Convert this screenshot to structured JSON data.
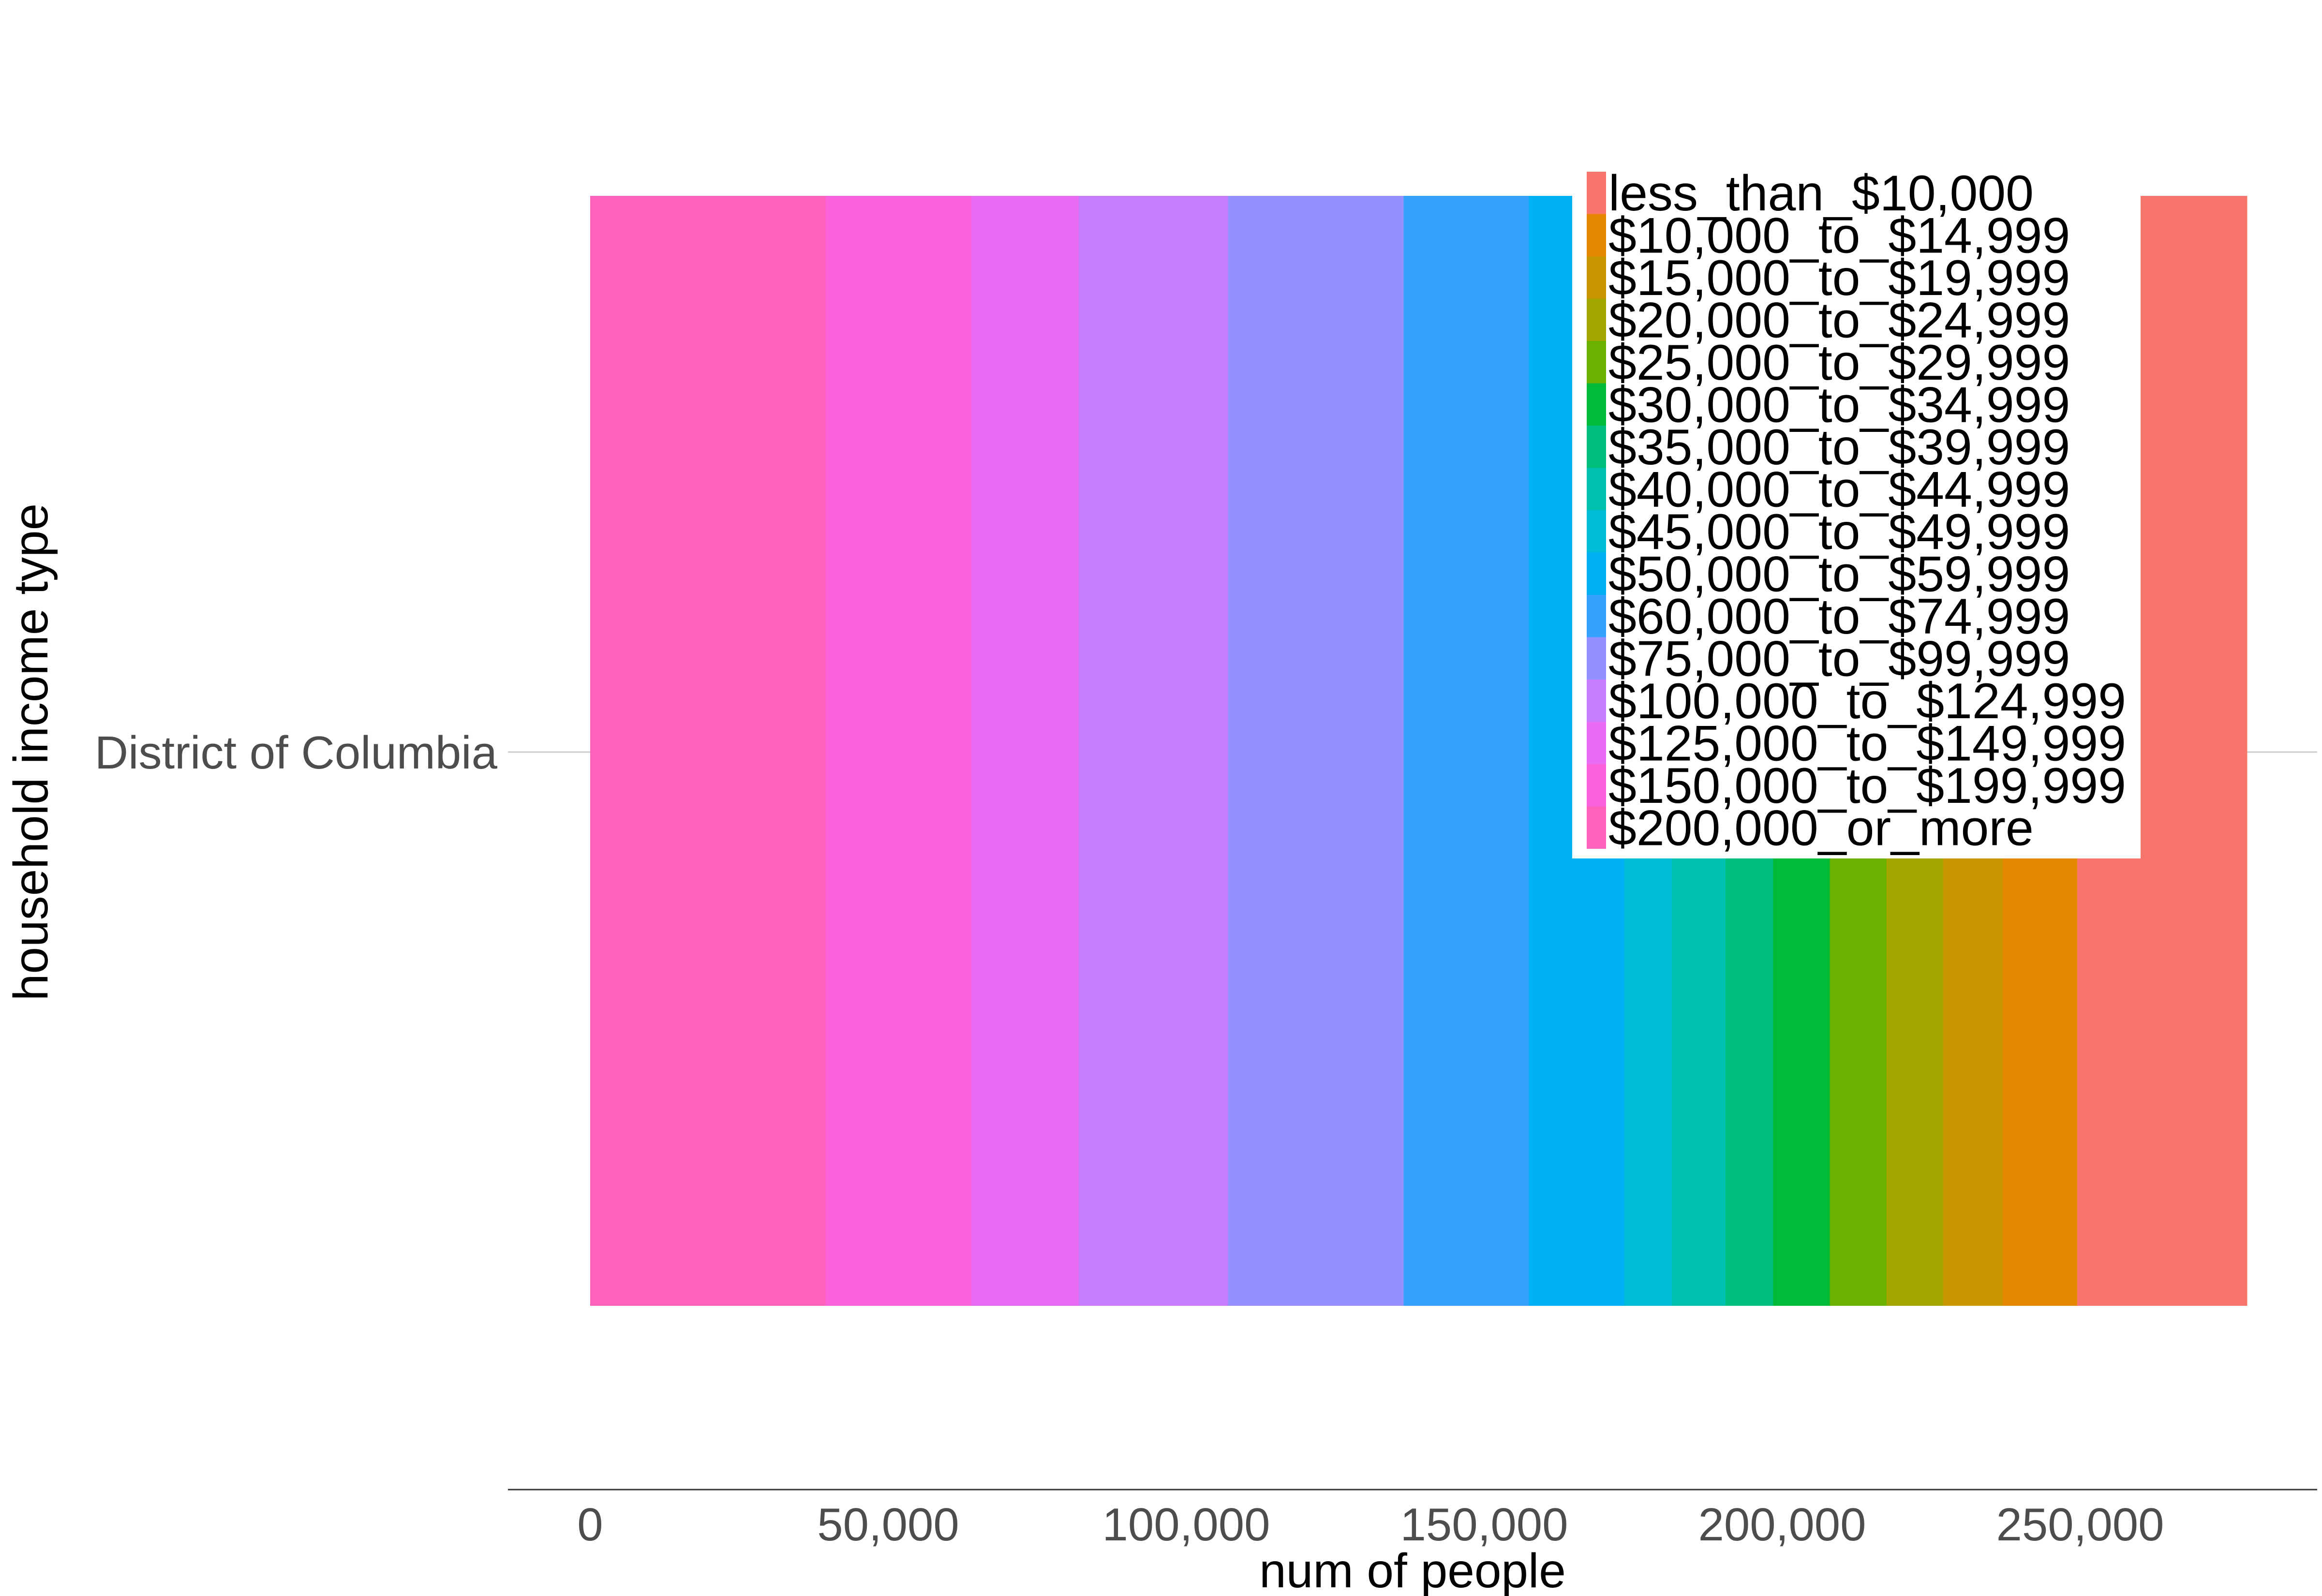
{
  "chart_data": {
    "type": "bar",
    "orientation": "horizontal",
    "stacked": true,
    "categories": [
      "District of Columbia"
    ],
    "xlabel": "num of people",
    "ylabel": "household income type",
    "xlim": [
      0,
      285000
    ],
    "xticks": [
      0,
      50000,
      100000,
      150000,
      200000,
      250000
    ],
    "xtick_labels": [
      "0",
      "50,000",
      "100,000",
      "150,000",
      "200,000",
      "250,000"
    ],
    "grid": false,
    "legend_position": "top-right",
    "series": [
      {
        "name": "less_than_$10,000",
        "values": [
          28500
        ],
        "color": "#F8766D"
      },
      {
        "name": "$10,000_to_$14,999",
        "values": [
          12500
        ],
        "color": "#E58700"
      },
      {
        "name": "$15,000_to_$19,999",
        "values": [
          10000
        ],
        "color": "#C99800"
      },
      {
        "name": "$20,000_to_$24,999",
        "values": [
          9500
        ],
        "color": "#A3A500"
      },
      {
        "name": "$25,000_to_$29,999",
        "values": [
          9500
        ],
        "color": "#6BB100"
      },
      {
        "name": "$30,000_to_$34,999",
        "values": [
          9500
        ],
        "color": "#00BA38"
      },
      {
        "name": "$35,000_to_$39,999",
        "values": [
          8000
        ],
        "color": "#00BF7D"
      },
      {
        "name": "$40,000_to_$44,999",
        "values": [
          9000
        ],
        "color": "#00C0AF"
      },
      {
        "name": "$45,000_to_$49,999",
        "values": [
          8000
        ],
        "color": "#00BCD8"
      },
      {
        "name": "$50,000_to_$59,999",
        "values": [
          16000
        ],
        "color": "#00B0F6"
      },
      {
        "name": "$60,000_to_$74,999",
        "values": [
          21000
        ],
        "color": "#35A2FF"
      },
      {
        "name": "$75,000_to_$99,999",
        "values": [
          29500
        ],
        "color": "#9590FF"
      },
      {
        "name": "$100,000_to_$124,999",
        "values": [
          25000
        ],
        "color": "#C77CFF"
      },
      {
        "name": "$125,000_to_$149,999",
        "values": [
          18000
        ],
        "color": "#E76BF3"
      },
      {
        "name": "$150,000_to_$199,999",
        "values": [
          24500
        ],
        "color": "#FA62DB"
      },
      {
        "name": "$200,000_or_more",
        "values": [
          39500
        ],
        "color": "#FF62BC"
      }
    ]
  }
}
